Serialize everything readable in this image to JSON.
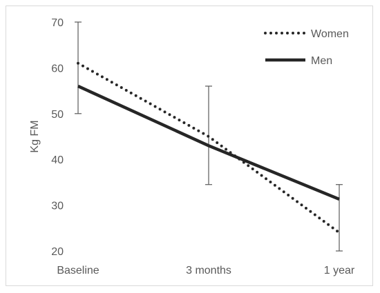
{
  "chart_data": {
    "type": "line",
    "categories": [
      "Baseline",
      "3 months",
      "1 year"
    ],
    "ylabel": "Kg FM",
    "ylim": [
      20,
      70
    ],
    "yticks": [
      20,
      30,
      40,
      50,
      60,
      70
    ],
    "grid": false,
    "legend_position": "top-right",
    "series": [
      {
        "name": "Women",
        "values": [
          61,
          45,
          24
        ],
        "style": "dotted",
        "color": "#262626"
      },
      {
        "name": "Men",
        "values": [
          56,
          43,
          31.3
        ],
        "style": "solid",
        "color": "#262626"
      }
    ],
    "error_bars": [
      {
        "category": "Baseline",
        "low": 50,
        "high": 70
      },
      {
        "category": "3 months",
        "low": 34.5,
        "high": 56
      },
      {
        "category": "1 year",
        "low": 20,
        "high": 34.5
      }
    ]
  }
}
